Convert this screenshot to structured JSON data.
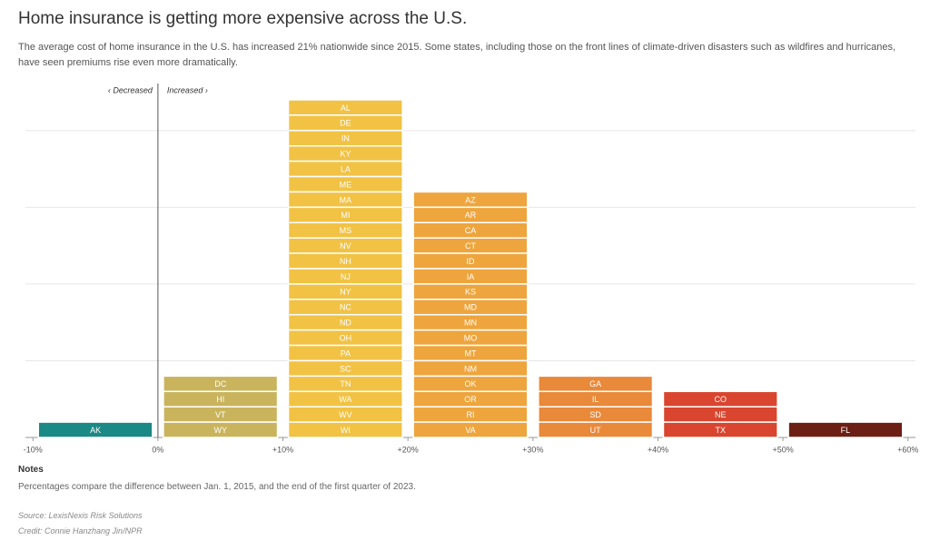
{
  "chart_data": {
    "type": "histogram",
    "title": "Home insurance is getting more expensive across the U.S.",
    "subtitle": "The average cost of home insurance in the U.S. has increased 21% nationwide since 2015. Some states, including those on the front lines of climate-driven disasters such as wildfires and hurricanes, have seen premiums rise even more dramatically.",
    "annotations": [
      "‹ Decreased",
      "Increased ›"
    ],
    "bins": [
      -10,
      0,
      10,
      20,
      30,
      40,
      50,
      60
    ],
    "counts": [
      1,
      4,
      22,
      16,
      4,
      3,
      1
    ],
    "colors": [
      "#1b8985",
      "#c9b45d",
      "#f1c244",
      "#eea53d",
      "#e9893a",
      "#d9452f",
      "#6c1f15"
    ],
    "states": [
      [
        "AK"
      ],
      [
        "DC",
        "HI",
        "VT",
        "WY"
      ],
      [
        "AL",
        "DE",
        "IN",
        "KY",
        "LA",
        "ME",
        "MA",
        "MI",
        "MS",
        "NV",
        "NH",
        "NJ",
        "NY",
        "NC",
        "ND",
        "OH",
        "PA",
        "SC",
        "TN",
        "WA",
        "WV",
        "WI"
      ],
      [
        "AZ",
        "AR",
        "CA",
        "CT",
        "ID",
        "IA",
        "KS",
        "MD",
        "MN",
        "MO",
        "MT",
        "NM",
        "OK",
        "OR",
        "RI",
        "VA"
      ],
      [
        "GA",
        "IL",
        "SD",
        "UT"
      ],
      [
        "CO",
        "NE",
        "TX"
      ],
      [
        "FL"
      ]
    ],
    "xlim": [
      -10.6,
      60.6
    ],
    "xticks": [
      {
        "value": -10,
        "label": "-10%"
      },
      {
        "value": 0,
        "label": "0%"
      },
      {
        "value": 10,
        "label": "+10%"
      },
      {
        "value": 20,
        "label": "+20%"
      },
      {
        "value": 30,
        "label": "+30%"
      },
      {
        "value": 40,
        "label": "+40%"
      },
      {
        "value": 50,
        "label": "+50%"
      },
      {
        "value": 60,
        "label": "+60%"
      }
    ],
    "ylim": [
      0,
      22
    ],
    "yticks": [
      5,
      10,
      15,
      20
    ],
    "grid": true,
    "notes_heading": "Notes",
    "notes": "Percentages compare the difference between Jan. 1, 2015, and the end of the first quarter of 2023.",
    "source": "Source: LexisNexis Risk Solutions",
    "credit": "Credit: Connie Hanzhang Jin/NPR"
  }
}
